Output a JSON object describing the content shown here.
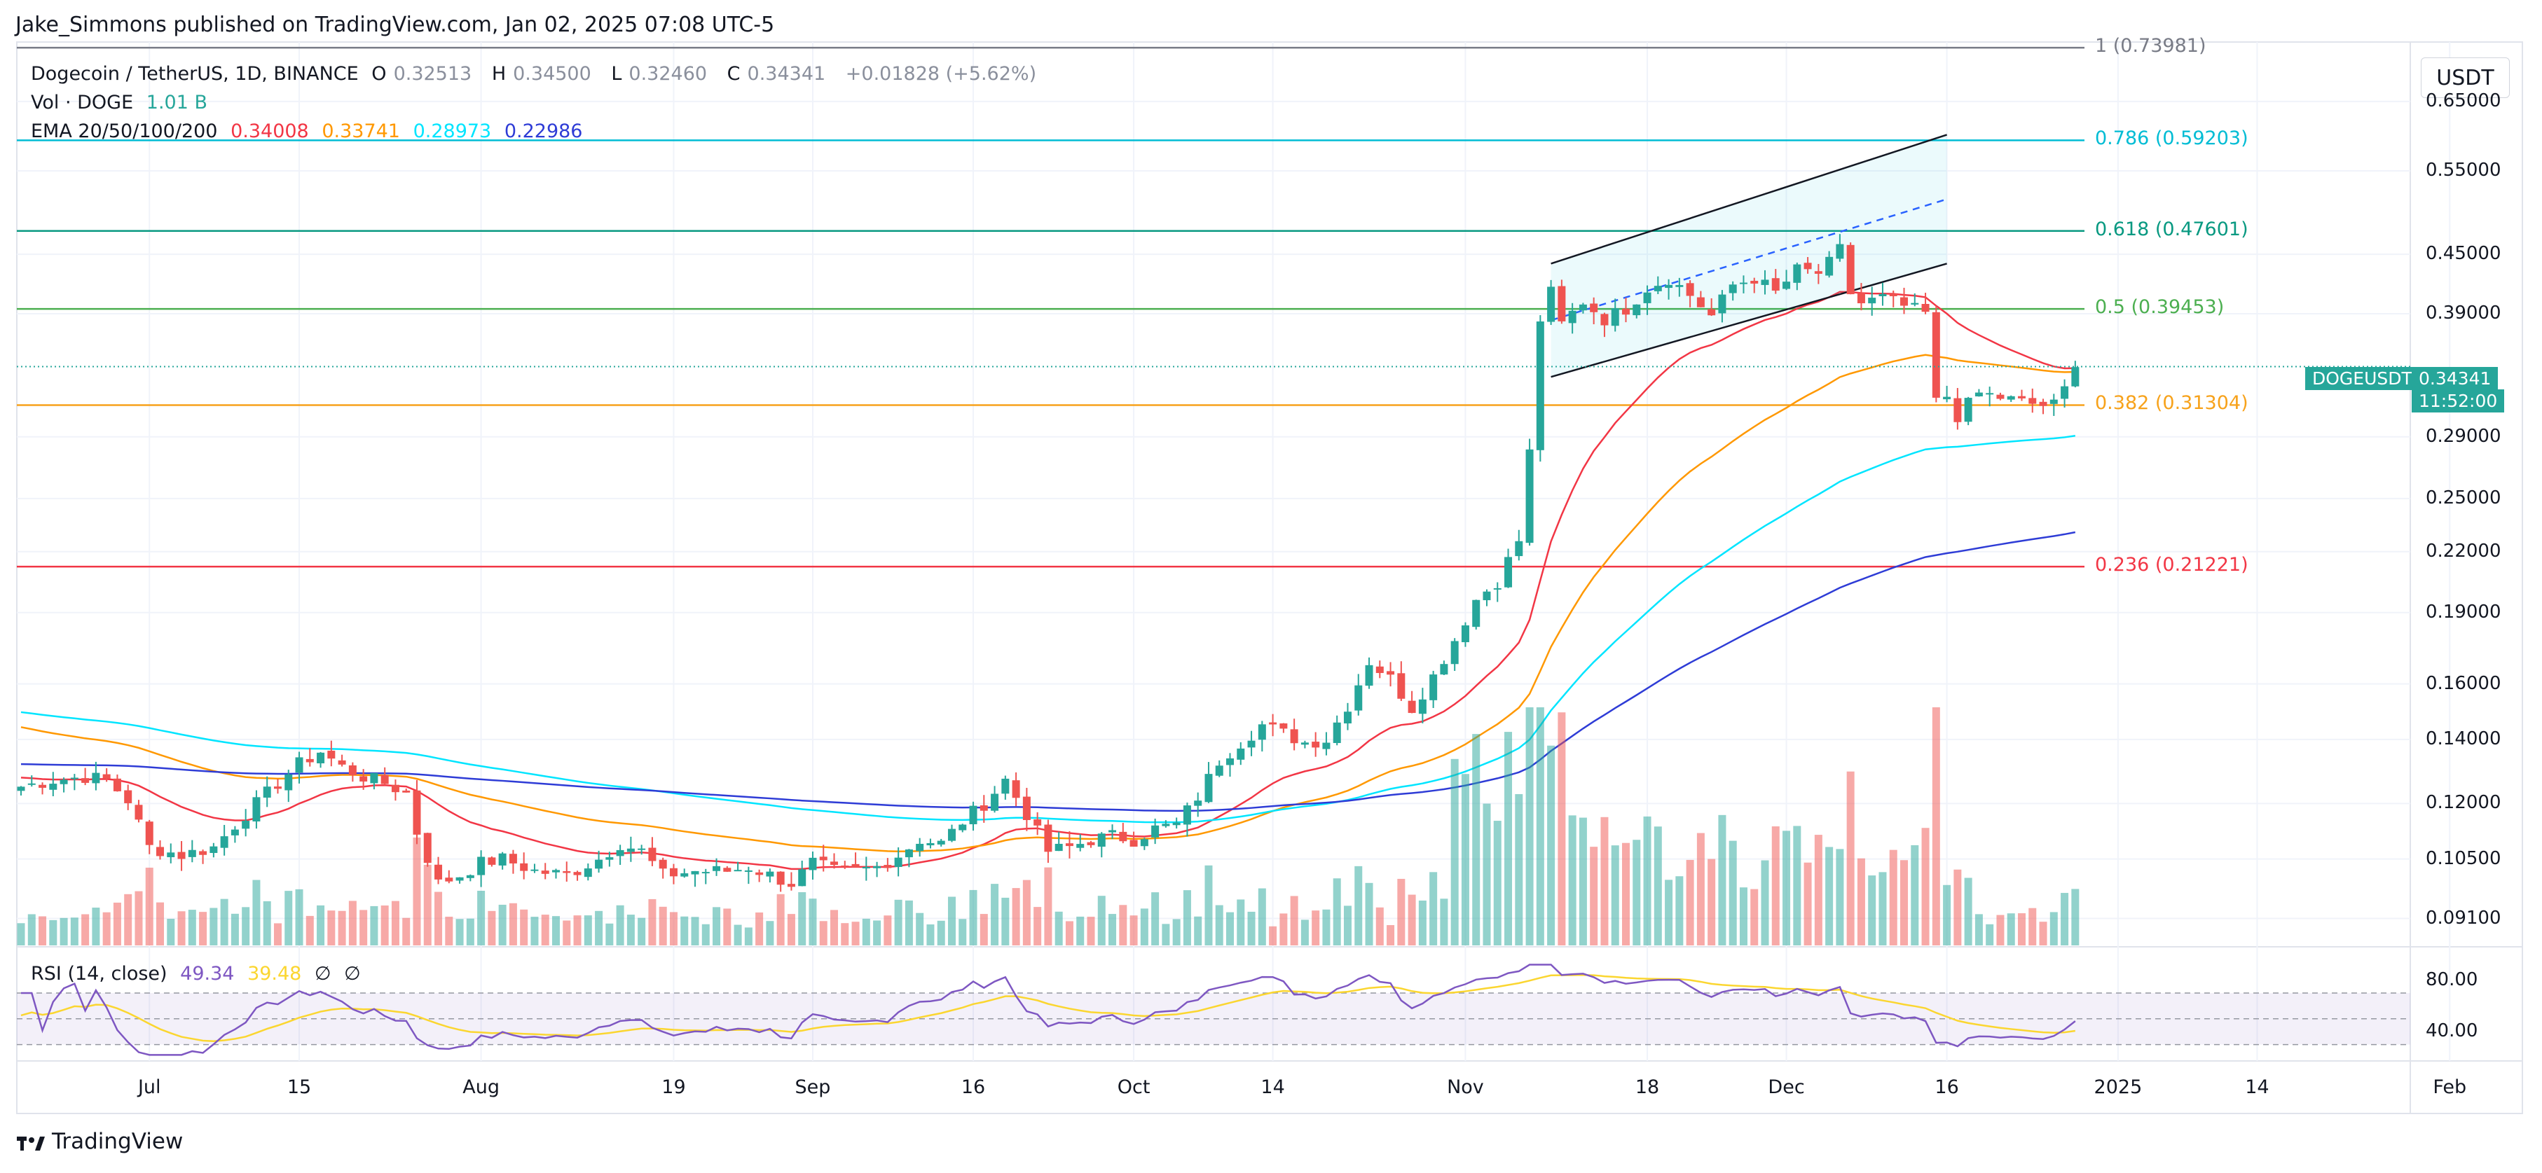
{
  "publisher_line": "Jake_Simmons published on TradingView.com, Jan 02, 2025 07:08 UTC-5",
  "legend": {
    "symbol": "Dogecoin / TetherUS, 1D, BINANCE",
    "o_label": "O",
    "o": "0.32513",
    "h_label": "H",
    "h": "0.34500",
    "l_label": "L",
    "l": "0.32460",
    "c_label": "C",
    "c": "0.34341",
    "change": "+0.01828 (+5.62%)",
    "vol_label": "Vol · DOGE",
    "vol": "1.01 B",
    "ema_label": "EMA 20/50/100/200",
    "ema20": "0.34008",
    "ema50": "0.33741",
    "ema100": "0.28973",
    "ema200": "0.22986"
  },
  "currency_label": "USDT",
  "symbol_badge": "DOGEUSDT",
  "last_price": "0.34341",
  "countdown": "11:52:00",
  "rsi_label": "RSI (14, close)",
  "rsi_value": "49.34",
  "rsi_ma": "39.48",
  "rsi_extra1": "∅",
  "rsi_extra2": "∅",
  "footer_brand": "TradingView",
  "colors": {
    "up": "#26a69a",
    "down": "#ef5350",
    "ema20": "#f23645",
    "ema50": "#ff9800",
    "ema100": "#00e5ff",
    "ema200": "#2e3cd6",
    "rsi": "#7e57c2",
    "rsi_ma": "#fbd630"
  },
  "chart_data": {
    "type": "candlestick",
    "title": "Dogecoin / TetherUS, 1D, BINANCE",
    "ylim": [
      0.085,
      0.75
    ],
    "yscale": "log",
    "price_ticks": [
      "0.65000",
      "0.55000",
      "0.45000",
      "0.39000",
      "0.34341",
      "0.29000",
      "0.25000",
      "0.22000",
      "0.19000",
      "0.16000",
      "0.14000",
      "0.12000",
      "0.10500",
      "0.09100"
    ],
    "x_ticks": [
      {
        "label": "Jul",
        "day": "2024-07-01"
      },
      {
        "label": "15",
        "day": "2024-07-15"
      },
      {
        "label": "Aug",
        "day": "2024-08-01"
      },
      {
        "label": "19",
        "day": "2024-08-19"
      },
      {
        "label": "Sep",
        "day": "2024-09-01"
      },
      {
        "label": "16",
        "day": "2024-09-16"
      },
      {
        "label": "Oct",
        "day": "2024-10-01"
      },
      {
        "label": "14",
        "day": "2024-10-14"
      },
      {
        "label": "Nov",
        "day": "2024-11-01"
      },
      {
        "label": "18",
        "day": "2024-11-18"
      },
      {
        "label": "Dec",
        "day": "2024-12-01"
      },
      {
        "label": "16",
        "day": "2024-12-16"
      },
      {
        "label": "2025",
        "day": "2025-01-01"
      },
      {
        "label": "14",
        "day": "2025-01-14"
      },
      {
        "label": "Feb",
        "day": "2025-02-01"
      }
    ],
    "close_anchors": [
      [
        0,
        0.125
      ],
      [
        3,
        0.127
      ],
      [
        6,
        0.128
      ],
      [
        8,
        0.127
      ],
      [
        10,
        0.121
      ],
      [
        12,
        0.108
      ],
      [
        15,
        0.106
      ],
      [
        18,
        0.108
      ],
      [
        20,
        0.114
      ],
      [
        22,
        0.12
      ],
      [
        24,
        0.126
      ],
      [
        26,
        0.132
      ],
      [
        28,
        0.136
      ],
      [
        30,
        0.131
      ],
      [
        32,
        0.128
      ],
      [
        34,
        0.126
      ],
      [
        36,
        0.123
      ],
      [
        37,
        0.112
      ],
      [
        39,
        0.099
      ],
      [
        41,
        0.101
      ],
      [
        43,
        0.104
      ],
      [
        45,
        0.105
      ],
      [
        48,
        0.102
      ],
      [
        51,
        0.101
      ],
      [
        54,
        0.105
      ],
      [
        56,
        0.109
      ],
      [
        58,
        0.107
      ],
      [
        60,
        0.101
      ],
      [
        63,
        0.102
      ],
      [
        66,
        0.102
      ],
      [
        68,
        0.103
      ],
      [
        70,
        0.101
      ],
      [
        72,
        0.099
      ],
      [
        74,
        0.104
      ],
      [
        76,
        0.102
      ],
      [
        78,
        0.102
      ],
      [
        80,
        0.103
      ],
      [
        82,
        0.106
      ],
      [
        84,
        0.11
      ],
      [
        86,
        0.109
      ],
      [
        88,
        0.115
      ],
      [
        90,
        0.12
      ],
      [
        92,
        0.127
      ],
      [
        94,
        0.117
      ],
      [
        96,
        0.107
      ],
      [
        98,
        0.108
      ],
      [
        100,
        0.11
      ],
      [
        102,
        0.111
      ],
      [
        104,
        0.11
      ],
      [
        106,
        0.113
      ],
      [
        108,
        0.114
      ],
      [
        110,
        0.122
      ],
      [
        112,
        0.133
      ],
      [
        114,
        0.139
      ],
      [
        116,
        0.145
      ],
      [
        118,
        0.142
      ],
      [
        120,
        0.139
      ],
      [
        122,
        0.14
      ],
      [
        124,
        0.152
      ],
      [
        126,
        0.169
      ],
      [
        128,
        0.162
      ],
      [
        130,
        0.151
      ],
      [
        132,
        0.163
      ],
      [
        134,
        0.178
      ],
      [
        136,
        0.196
      ],
      [
        138,
        0.205
      ],
      [
        140,
        0.226
      ],
      [
        141,
        0.279
      ],
      [
        142,
        0.385
      ],
      [
        143,
        0.41
      ],
      [
        144,
        0.38
      ],
      [
        146,
        0.402
      ],
      [
        148,
        0.385
      ],
      [
        150,
        0.395
      ],
      [
        152,
        0.415
      ],
      [
        154,
        0.425
      ],
      [
        156,
        0.408
      ],
      [
        158,
        0.388
      ],
      [
        160,
        0.418
      ],
      [
        162,
        0.425
      ],
      [
        164,
        0.41
      ],
      [
        166,
        0.433
      ],
      [
        168,
        0.43
      ],
      [
        169,
        0.44
      ],
      [
        170,
        0.455
      ],
      [
        171,
        0.41
      ],
      [
        172,
        0.4
      ],
      [
        174,
        0.405
      ],
      [
        176,
        0.397
      ],
      [
        178,
        0.39
      ],
      [
        179,
        0.315
      ],
      [
        180,
        0.32
      ],
      [
        181,
        0.305
      ],
      [
        183,
        0.322
      ],
      [
        185,
        0.319
      ],
      [
        187,
        0.315
      ],
      [
        189,
        0.313
      ],
      [
        190,
        0.313
      ],
      [
        191,
        0.325
      ],
      [
        192,
        0.343
      ]
    ],
    "ema_final": {
      "ema20": 0.34008,
      "ema50": 0.33741,
      "ema100": 0.28973,
      "ema200": 0.22986
    },
    "fibonacci": [
      {
        "level": "1",
        "value": 0.73981,
        "label": "1 (0.73981)",
        "color": "#787b86"
      },
      {
        "level": "0.786",
        "value": 0.59203,
        "label": "0.786 (0.59203)",
        "color": "#00bcd4"
      },
      {
        "level": "0.618",
        "value": 0.47601,
        "label": "0.618 (0.47601)",
        "color": "#089981"
      },
      {
        "level": "0.5",
        "value": 0.39453,
        "label": "0.5 (0.39453)",
        "color": "#4caf50"
      },
      {
        "level": "0.382",
        "value": 0.31304,
        "label": "0.382 (0.31304)",
        "color": "#f7a21b"
      },
      {
        "level": "0.236",
        "value": 0.21221,
        "label": "0.236 (0.21221)",
        "color": "#f23645"
      }
    ],
    "channel": {
      "upper": [
        [
          143,
          0.44
        ],
        [
          180,
          0.6
        ]
      ],
      "lower": [
        [
          143,
          0.335
        ],
        [
          180,
          0.44
        ]
      ]
    },
    "rsi": {
      "ylim": [
        20,
        95
      ],
      "ticks": [
        "80.00",
        "40.00"
      ],
      "upper": 70,
      "mid": 50,
      "lower": 30
    }
  }
}
